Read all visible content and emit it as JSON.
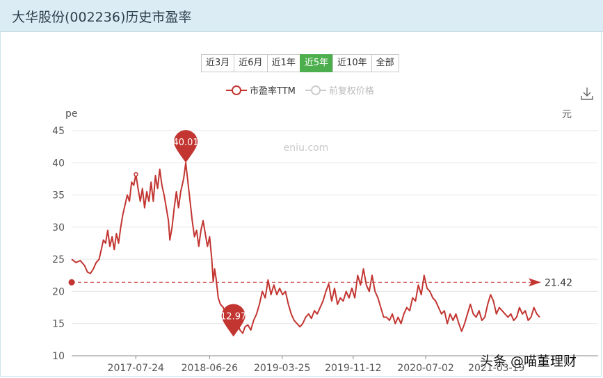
{
  "header": {
    "title": "大华股份(002236)历史市盈率"
  },
  "range_tabs": [
    {
      "label": "近3月",
      "active": false
    },
    {
      "label": "近6月",
      "active": false
    },
    {
      "label": "近1年",
      "active": false
    },
    {
      "label": "近5年",
      "active": true
    },
    {
      "label": "近10年",
      "active": false
    },
    {
      "label": "全部",
      "active": false
    }
  ],
  "legend": [
    {
      "label": "市盈率TTM",
      "color": "#c23531",
      "enabled": true
    },
    {
      "label": "前复权价格",
      "color": "#cccccc",
      "enabled": false
    }
  ],
  "icons": {
    "download": "download-icon"
  },
  "watermark_site": "eniu.com",
  "watermark_credit": "头条 @喵董理财",
  "chart_data": {
    "type": "line",
    "ylabel_left": "pe",
    "ylabel_right": "元",
    "ylim": [
      10,
      45
    ],
    "yticks": [
      10,
      15,
      20,
      25,
      30,
      35,
      40,
      45
    ],
    "xtick_labels": [
      "2017-07-24",
      "2018-06-26",
      "2019-03-25",
      "2019-11-12",
      "2020-07-02",
      "2021-03-19"
    ],
    "xtick_t": [
      0.1776,
      0.3819,
      0.5829,
      0.7796,
      0.9803,
      1.1762
    ],
    "grid": true,
    "series": [
      {
        "name": "市盈率TTM",
        "color": "#c23531",
        "points": [
          [
            0.0,
            25.0
          ],
          [
            0.012,
            24.5
          ],
          [
            0.024,
            24.8
          ],
          [
            0.036,
            24.0
          ],
          [
            0.044,
            23.0
          ],
          [
            0.052,
            22.8
          ],
          [
            0.06,
            23.5
          ],
          [
            0.068,
            24.5
          ],
          [
            0.076,
            25.0
          ],
          [
            0.082,
            26.5
          ],
          [
            0.088,
            28.0
          ],
          [
            0.094,
            27.5
          ],
          [
            0.1,
            29.5
          ],
          [
            0.106,
            27.0
          ],
          [
            0.112,
            28.5
          ],
          [
            0.118,
            26.5
          ],
          [
            0.124,
            29.0
          ],
          [
            0.13,
            27.5
          ],
          [
            0.136,
            30.0
          ],
          [
            0.142,
            32.0
          ],
          [
            0.148,
            33.5
          ],
          [
            0.154,
            35.0
          ],
          [
            0.16,
            34.0
          ],
          [
            0.166,
            37.0
          ],
          [
            0.172,
            36.5
          ],
          [
            0.178,
            38.2
          ],
          [
            0.184,
            36.0
          ],
          [
            0.19,
            34.0
          ],
          [
            0.196,
            36.0
          ],
          [
            0.202,
            33.0
          ],
          [
            0.208,
            35.5
          ],
          [
            0.214,
            34.0
          ],
          [
            0.22,
            37.0
          ],
          [
            0.226,
            34.0
          ],
          [
            0.232,
            38.0
          ],
          [
            0.238,
            36.0
          ],
          [
            0.244,
            39.0
          ],
          [
            0.25,
            36.5
          ],
          [
            0.256,
            35.0
          ],
          [
            0.262,
            33.0
          ],
          [
            0.268,
            31.0
          ],
          [
            0.272,
            28.0
          ],
          [
            0.278,
            30.0
          ],
          [
            0.284,
            33.0
          ],
          [
            0.29,
            35.5
          ],
          [
            0.296,
            33.0
          ],
          [
            0.302,
            35.5
          ],
          [
            0.31,
            37.5
          ],
          [
            0.316,
            40.01
          ],
          [
            0.322,
            37.0
          ],
          [
            0.328,
            34.0
          ],
          [
            0.334,
            31.0
          ],
          [
            0.34,
            28.5
          ],
          [
            0.346,
            29.5
          ],
          [
            0.352,
            27.0
          ],
          [
            0.358,
            29.5
          ],
          [
            0.364,
            31.0
          ],
          [
            0.37,
            29.0
          ],
          [
            0.376,
            27.0
          ],
          [
            0.382,
            28.5
          ],
          [
            0.388,
            25.0
          ],
          [
            0.392,
            21.5
          ],
          [
            0.396,
            23.5
          ],
          [
            0.4,
            22.0
          ],
          [
            0.406,
            19.0
          ],
          [
            0.412,
            18.0
          ],
          [
            0.42,
            17.5
          ],
          [
            0.428,
            16.0
          ],
          [
            0.436,
            15.5
          ],
          [
            0.442,
            15.0
          ],
          [
            0.448,
            13.2
          ],
          [
            0.454,
            14.5
          ],
          [
            0.46,
            15.0
          ],
          [
            0.466,
            14.0
          ],
          [
            0.474,
            13.5
          ],
          [
            0.48,
            14.5
          ],
          [
            0.488,
            14.8
          ],
          [
            0.496,
            14.0
          ],
          [
            0.504,
            15.5
          ],
          [
            0.512,
            16.5
          ],
          [
            0.52,
            18.0
          ],
          [
            0.528,
            20.0
          ],
          [
            0.536,
            19.0
          ],
          [
            0.544,
            21.8
          ],
          [
            0.552,
            19.5
          ],
          [
            0.56,
            21.0
          ],
          [
            0.568,
            19.5
          ],
          [
            0.576,
            20.5
          ],
          [
            0.584,
            19.5
          ],
          [
            0.592,
            20.0
          ],
          [
            0.6,
            18.0
          ],
          [
            0.608,
            16.5
          ],
          [
            0.616,
            15.5
          ],
          [
            0.624,
            15.0
          ],
          [
            0.632,
            14.5
          ],
          [
            0.64,
            15.0
          ],
          [
            0.648,
            16.0
          ],
          [
            0.656,
            16.5
          ],
          [
            0.664,
            15.8
          ],
          [
            0.672,
            17.0
          ],
          [
            0.68,
            16.5
          ],
          [
            0.688,
            17.5
          ],
          [
            0.696,
            18.5
          ],
          [
            0.704,
            20.0
          ],
          [
            0.712,
            21.2
          ],
          [
            0.72,
            18.5
          ],
          [
            0.728,
            20.5
          ],
          [
            0.736,
            18.0
          ],
          [
            0.744,
            19.0
          ],
          [
            0.752,
            18.5
          ],
          [
            0.76,
            20.0
          ],
          [
            0.768,
            19.0
          ],
          [
            0.776,
            20.5
          ],
          [
            0.784,
            19.0
          ],
          [
            0.792,
            22.5
          ],
          [
            0.8,
            21.0
          ],
          [
            0.808,
            23.5
          ],
          [
            0.816,
            21.0
          ],
          [
            0.824,
            20.0
          ],
          [
            0.832,
            22.5
          ],
          [
            0.84,
            20.0
          ],
          [
            0.848,
            19.0
          ],
          [
            0.856,
            17.5
          ],
          [
            0.864,
            16.0
          ],
          [
            0.872,
            16.0
          ],
          [
            0.88,
            15.5
          ],
          [
            0.888,
            16.5
          ],
          [
            0.896,
            15.0
          ],
          [
            0.904,
            16.0
          ],
          [
            0.912,
            15.0
          ],
          [
            0.92,
            16.5
          ],
          [
            0.928,
            17.5
          ],
          [
            0.936,
            17.0
          ],
          [
            0.944,
            19.0
          ],
          [
            0.952,
            18.5
          ],
          [
            0.96,
            21.0
          ],
          [
            0.968,
            19.5
          ],
          [
            0.976,
            22.5
          ],
          [
            0.984,
            20.5
          ],
          [
            0.992,
            20.0
          ],
          [
            1.0,
            19.0
          ],
          [
            1.008,
            18.5
          ],
          [
            1.016,
            17.5
          ],
          [
            1.024,
            16.5
          ],
          [
            1.032,
            17.0
          ],
          [
            1.04,
            15.0
          ],
          [
            1.048,
            16.5
          ],
          [
            1.056,
            15.5
          ],
          [
            1.064,
            16.5
          ],
          [
            1.072,
            15.0
          ],
          [
            1.08,
            13.8
          ],
          [
            1.088,
            15.0
          ],
          [
            1.096,
            16.5
          ],
          [
            1.104,
            18.0
          ],
          [
            1.112,
            16.5
          ],
          [
            1.12,
            16.0
          ],
          [
            1.128,
            17.0
          ],
          [
            1.136,
            15.5
          ],
          [
            1.144,
            16.0
          ],
          [
            1.152,
            18.0
          ],
          [
            1.16,
            19.5
          ],
          [
            1.168,
            18.5
          ],
          [
            1.176,
            16.5
          ],
          [
            1.184,
            17.5
          ],
          [
            1.192,
            17.0
          ],
          [
            1.2,
            16.5
          ],
          [
            1.208,
            16.0
          ],
          [
            1.216,
            16.5
          ],
          [
            1.224,
            15.5
          ],
          [
            1.232,
            16.0
          ],
          [
            1.24,
            17.5
          ],
          [
            1.248,
            16.5
          ],
          [
            1.256,
            17.0
          ],
          [
            1.264,
            15.5
          ],
          [
            1.272,
            16.0
          ],
          [
            1.28,
            17.5
          ],
          [
            1.288,
            16.5
          ],
          [
            1.296,
            16.0
          ]
        ]
      }
    ],
    "annotations": {
      "max": {
        "label": "40.01",
        "value": 40.01,
        "t": 0.316
      },
      "min": {
        "label": "12.97",
        "value": 12.97,
        "t": 0.448
      },
      "reference": {
        "label": "21.42",
        "value": 21.42
      }
    }
  }
}
